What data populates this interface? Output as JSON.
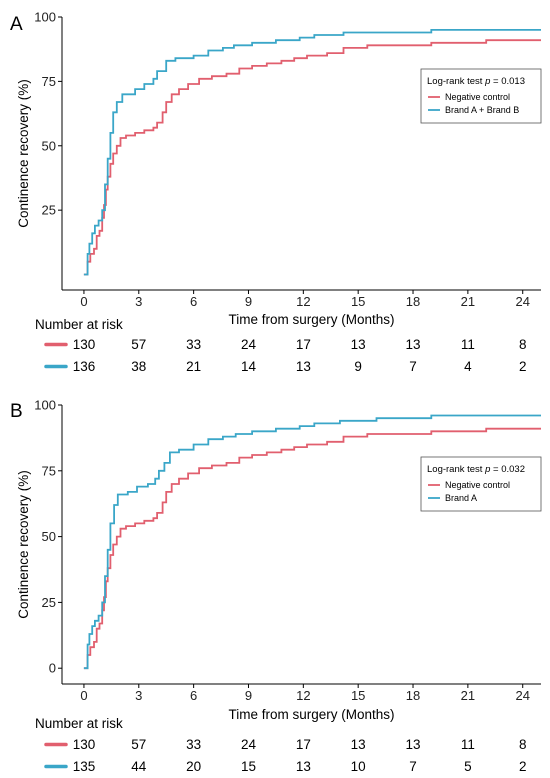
{
  "colors": {
    "negative": "#e15f6e",
    "brand": "#3aa6c8"
  },
  "chart_data": [
    {
      "panel_label": "A",
      "type": "line",
      "step": true,
      "xlabel": "Time from surgery (Months)",
      "ylabel": "Continence recovery (%)",
      "xlim": [
        -1.2,
        25
      ],
      "ylim": [
        -6,
        100
      ],
      "xticks": [
        0,
        3,
        6,
        9,
        12,
        15,
        18,
        21,
        24
      ],
      "yticks": [
        25,
        50,
        75,
        100
      ],
      "legend": {
        "position": "top-right",
        "title_prefix": "Log-rank test ",
        "title_p": "p",
        "title_suffix": " = 0.013"
      },
      "series": [
        {
          "name": "Negative control",
          "color": "#e15f6e",
          "points": [
            [
              0,
              0
            ],
            [
              0.2,
              5
            ],
            [
              0.35,
              8
            ],
            [
              0.55,
              10
            ],
            [
              0.7,
              15
            ],
            [
              0.85,
              17
            ],
            [
              1.0,
              22
            ],
            [
              1.1,
              27
            ],
            [
              1.2,
              33
            ],
            [
              1.3,
              38
            ],
            [
              1.45,
              43
            ],
            [
              1.6,
              47
            ],
            [
              1.8,
              50
            ],
            [
              2.0,
              53
            ],
            [
              2.3,
              54
            ],
            [
              2.8,
              55
            ],
            [
              3.3,
              56
            ],
            [
              3.8,
              57
            ],
            [
              4.0,
              59
            ],
            [
              4.3,
              63
            ],
            [
              4.5,
              67
            ],
            [
              4.8,
              70
            ],
            [
              5.2,
              72
            ],
            [
              5.7,
              74
            ],
            [
              6.3,
              76
            ],
            [
              7.0,
              77
            ],
            [
              7.8,
              78
            ],
            [
              8.5,
              80
            ],
            [
              9.2,
              81
            ],
            [
              10.0,
              82
            ],
            [
              10.8,
              83
            ],
            [
              11.5,
              84
            ],
            [
              12.2,
              85
            ],
            [
              13.3,
              86
            ],
            [
              14.2,
              88
            ],
            [
              15.5,
              89
            ],
            [
              19.0,
              90
            ],
            [
              22.0,
              91
            ],
            [
              25.0,
              91
            ]
          ]
        },
        {
          "name": "Brand A + Brand B",
          "color": "#3aa6c8",
          "points": [
            [
              0,
              0
            ],
            [
              0.2,
              8
            ],
            [
              0.3,
              12
            ],
            [
              0.45,
              16
            ],
            [
              0.6,
              19
            ],
            [
              0.8,
              21
            ],
            [
              1.0,
              25
            ],
            [
              1.15,
              35
            ],
            [
              1.3,
              45
            ],
            [
              1.45,
              55
            ],
            [
              1.6,
              63
            ],
            [
              1.8,
              67
            ],
            [
              2.1,
              70
            ],
            [
              2.8,
              72
            ],
            [
              3.3,
              74
            ],
            [
              3.8,
              76
            ],
            [
              4.0,
              79
            ],
            [
              4.5,
              83
            ],
            [
              5.0,
              84
            ],
            [
              6.0,
              85
            ],
            [
              6.8,
              87
            ],
            [
              7.6,
              88
            ],
            [
              8.2,
              89
            ],
            [
              9.2,
              90
            ],
            [
              10.5,
              91
            ],
            [
              11.8,
              92
            ],
            [
              12.6,
              93
            ],
            [
              14.2,
              94
            ],
            [
              16.0,
              94
            ],
            [
              19.0,
              95
            ],
            [
              25.0,
              95
            ]
          ]
        }
      ],
      "risk_table": {
        "title": "Number at risk",
        "rows": [
          {
            "color": "#e15f6e",
            "values": [
              "130",
              "57",
              "33",
              "24",
              "17",
              "13",
              "13",
              "11",
              "8"
            ]
          },
          {
            "color": "#3aa6c8",
            "values": [
              "136",
              "38",
              "21",
              "14",
              "13",
              "9",
              "7",
              "4",
              "2"
            ]
          }
        ]
      }
    },
    {
      "panel_label": "B",
      "type": "line",
      "step": true,
      "xlabel": "Time from surgery (Months)",
      "ylabel": "Continence recovery (%)",
      "xlim": [
        -1.2,
        25
      ],
      "ylim": [
        -6,
        100
      ],
      "xticks": [
        0,
        3,
        6,
        9,
        12,
        15,
        18,
        21,
        24
      ],
      "yticks": [
        0,
        25,
        50,
        75,
        100
      ],
      "legend": {
        "position": "top-right",
        "title_prefix": "Log-rank test ",
        "title_p": "p",
        "title_suffix": " = 0.032"
      },
      "series": [
        {
          "name": "Negative control",
          "color": "#e15f6e",
          "points": [
            [
              0,
              0
            ],
            [
              0.2,
              5
            ],
            [
              0.35,
              8
            ],
            [
              0.55,
              10
            ],
            [
              0.7,
              15
            ],
            [
              0.85,
              17
            ],
            [
              1.0,
              22
            ],
            [
              1.1,
              27
            ],
            [
              1.2,
              33
            ],
            [
              1.3,
              38
            ],
            [
              1.45,
              43
            ],
            [
              1.6,
              47
            ],
            [
              1.8,
              50
            ],
            [
              2.0,
              53
            ],
            [
              2.3,
              54
            ],
            [
              2.8,
              55
            ],
            [
              3.3,
              56
            ],
            [
              3.8,
              57
            ],
            [
              4.0,
              59
            ],
            [
              4.3,
              63
            ],
            [
              4.5,
              67
            ],
            [
              4.8,
              70
            ],
            [
              5.2,
              72
            ],
            [
              5.7,
              74
            ],
            [
              6.3,
              76
            ],
            [
              7.0,
              77
            ],
            [
              7.8,
              78
            ],
            [
              8.5,
              80
            ],
            [
              9.2,
              81
            ],
            [
              10.0,
              82
            ],
            [
              10.8,
              83
            ],
            [
              11.5,
              84
            ],
            [
              12.2,
              85
            ],
            [
              13.3,
              86
            ],
            [
              14.2,
              88
            ],
            [
              15.5,
              89
            ],
            [
              19.0,
              90
            ],
            [
              22.0,
              91
            ],
            [
              25.0,
              91
            ]
          ]
        },
        {
          "name": "Brand A",
          "color": "#3aa6c8",
          "points": [
            [
              0,
              0
            ],
            [
              0.2,
              9
            ],
            [
              0.3,
              13
            ],
            [
              0.45,
              16
            ],
            [
              0.6,
              18
            ],
            [
              0.8,
              20
            ],
            [
              1.0,
              25
            ],
            [
              1.15,
              35
            ],
            [
              1.3,
              45
            ],
            [
              1.45,
              55
            ],
            [
              1.65,
              62
            ],
            [
              1.85,
              66
            ],
            [
              2.4,
              67
            ],
            [
              2.9,
              69
            ],
            [
              3.5,
              70
            ],
            [
              3.9,
              72
            ],
            [
              4.1,
              75
            ],
            [
              4.4,
              78
            ],
            [
              4.7,
              82
            ],
            [
              5.2,
              83
            ],
            [
              6.0,
              85
            ],
            [
              6.8,
              87
            ],
            [
              7.6,
              88
            ],
            [
              8.3,
              89
            ],
            [
              9.2,
              90
            ],
            [
              10.5,
              91
            ],
            [
              11.8,
              92
            ],
            [
              12.6,
              93
            ],
            [
              14.0,
              94
            ],
            [
              16.0,
              95
            ],
            [
              19.0,
              96
            ],
            [
              25.0,
              96
            ]
          ]
        }
      ],
      "risk_table": {
        "title": "Number at risk",
        "rows": [
          {
            "color": "#e15f6e",
            "values": [
              "130",
              "57",
              "33",
              "24",
              "17",
              "13",
              "13",
              "11",
              "8"
            ]
          },
          {
            "color": "#3aa6c8",
            "values": [
              "135",
              "44",
              "20",
              "15",
              "13",
              "10",
              "7",
              "5",
              "2"
            ]
          }
        ]
      }
    }
  ]
}
